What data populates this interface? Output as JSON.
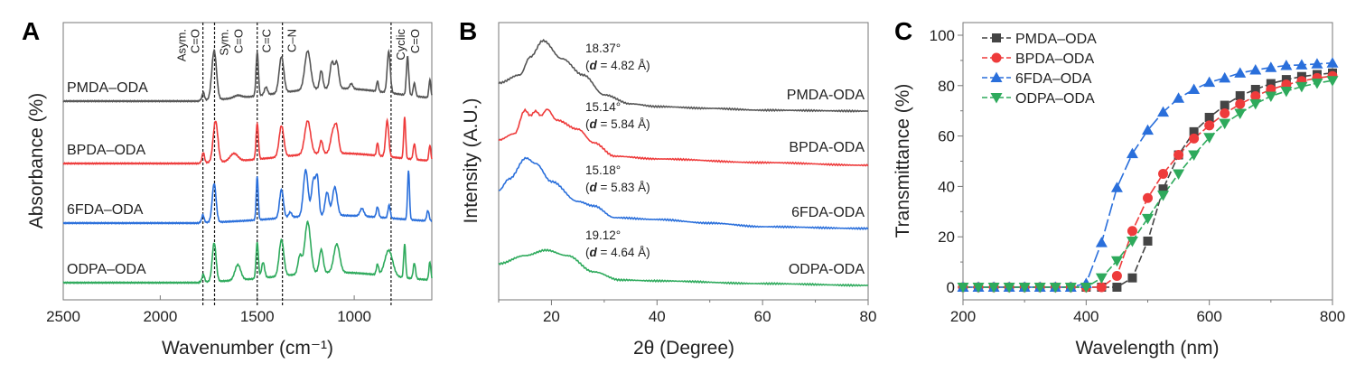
{
  "panels": {
    "a": "A",
    "b": "B",
    "c": "C"
  },
  "chart_data": [
    {
      "type": "line",
      "panel": "A",
      "xlabel": "Wavenumber (cm⁻¹)",
      "ylabel": "Absorbance (%)",
      "xlim": [
        2500,
        600
      ],
      "x_reversed": true,
      "xticks": [
        "2500",
        "2000",
        "1500",
        "1000"
      ],
      "y_ticks_shown": false,
      "band_lines": [
        {
          "wavenumber": 1780,
          "label": [
            "Asym.",
            "C=O"
          ]
        },
        {
          "wavenumber": 1720,
          "label": [
            "Sym.",
            "C=O"
          ]
        },
        {
          "wavenumber": 1500,
          "label": [
            "C=C"
          ]
        },
        {
          "wavenumber": 1370,
          "label": [
            "C–N"
          ]
        },
        {
          "wavenumber": 810,
          "label": [
            "Cyclic",
            "C=O"
          ]
        }
      ],
      "series": [
        {
          "name": "PMDA–ODA",
          "color": "#555555",
          "peaks_wavenumber_height_width": [
            [
              1778,
              0.15,
              6
            ],
            [
              1722,
              0.95,
              12
            ],
            [
              1600,
              0.05,
              20
            ],
            [
              1500,
              0.85,
              6
            ],
            [
              1455,
              0.15,
              8
            ],
            [
              1375,
              0.7,
              12
            ],
            [
              1240,
              0.75,
              15
            ],
            [
              1170,
              0.35,
              8
            ],
            [
              1115,
              0.5,
              10
            ],
            [
              1090,
              0.5,
              10
            ],
            [
              1015,
              0.1,
              8
            ],
            [
              880,
              0.2,
              5
            ],
            [
              822,
              0.8,
              8
            ],
            [
              725,
              0.75,
              6
            ],
            [
              690,
              0.25,
              6
            ],
            [
              610,
              0.35,
              5
            ],
            [
              1100,
              0.25,
              300
            ]
          ]
        },
        {
          "name": "BPDA–ODA",
          "color": "#ee3b3b",
          "peaks_wavenumber_height_width": [
            [
              1778,
              0.2,
              6
            ],
            [
              1715,
              0.8,
              12
            ],
            [
              1620,
              0.15,
              20
            ],
            [
              1500,
              0.7,
              6
            ],
            [
              1375,
              0.6,
              12
            ],
            [
              1240,
              0.65,
              15
            ],
            [
              1170,
              0.25,
              8
            ],
            [
              1110,
              0.4,
              12
            ],
            [
              1090,
              0.45,
              10
            ],
            [
              880,
              0.25,
              5
            ],
            [
              830,
              0.7,
              8
            ],
            [
              740,
              0.8,
              5
            ],
            [
              690,
              0.3,
              6
            ],
            [
              610,
              0.3,
              5
            ],
            [
              1100,
              0.2,
              300
            ]
          ]
        },
        {
          "name": "6FDA–ODA",
          "color": "#2a6fdb",
          "peaks_wavenumber_height_width": [
            [
              1780,
              0.15,
              6
            ],
            [
              1722,
              0.75,
              10
            ],
            [
              1500,
              0.85,
              5
            ],
            [
              1375,
              0.55,
              10
            ],
            [
              1330,
              0.1,
              8
            ],
            [
              1250,
              0.9,
              12
            ],
            [
              1210,
              0.7,
              10
            ],
            [
              1190,
              0.7,
              8
            ],
            [
              1140,
              0.45,
              10
            ],
            [
              1100,
              0.55,
              12
            ],
            [
              960,
              0.15,
              10
            ],
            [
              880,
              0.2,
              6
            ],
            [
              820,
              0.25,
              6
            ],
            [
              720,
              0.95,
              5
            ],
            [
              620,
              0.2,
              6
            ],
            [
              1100,
              0.15,
              300
            ]
          ]
        },
        {
          "name": "ODPA–ODA",
          "color": "#2eaa5c",
          "peaks_wavenumber_height_width": [
            [
              1778,
              0.15,
              6
            ],
            [
              1722,
              0.75,
              10
            ],
            [
              1600,
              0.3,
              15
            ],
            [
              1500,
              0.7,
              6
            ],
            [
              1470,
              0.3,
              8
            ],
            [
              1375,
              0.7,
              12
            ],
            [
              1280,
              0.35,
              10
            ],
            [
              1240,
              1.0,
              15
            ],
            [
              1170,
              0.45,
              10
            ],
            [
              1090,
              0.55,
              15
            ],
            [
              880,
              0.2,
              6
            ],
            [
              822,
              0.5,
              20
            ],
            [
              740,
              0.65,
              5
            ],
            [
              690,
              0.3,
              6
            ],
            [
              610,
              0.35,
              5
            ],
            [
              1100,
              0.2,
              300
            ]
          ]
        }
      ]
    },
    {
      "type": "line",
      "panel": "B",
      "xlabel": "2θ (Degree)",
      "ylabel": "Intensity (A.U.)",
      "xlim": [
        10,
        80
      ],
      "xticks": [
        "20",
        "40",
        "60",
        "80"
      ],
      "y_ticks_shown": false,
      "series": [
        {
          "name": "PMDA-ODA",
          "color": "#555555",
          "peak": "18.37°",
          "d": "4.82 Å",
          "points": [
            [
              10,
              31
            ],
            [
              14,
              40
            ],
            [
              16,
              60
            ],
            [
              18.4,
              78
            ],
            [
              22,
              58
            ],
            [
              26,
              40
            ],
            [
              30,
              18
            ],
            [
              35,
              8
            ],
            [
              40,
              5
            ],
            [
              50,
              3
            ],
            [
              60,
              1
            ],
            [
              80,
              0
            ]
          ]
        },
        {
          "name": "BPDA-ODA",
          "color": "#ee3b3b",
          "peak": "15.14°",
          "d": "5.84 Å",
          "points": [
            [
              10,
              28
            ],
            [
              13,
              35
            ],
            [
              15,
              61
            ],
            [
              16,
              55
            ],
            [
              17,
              60
            ],
            [
              18,
              55
            ],
            [
              19.2,
              62
            ],
            [
              21,
              50
            ],
            [
              25,
              40
            ],
            [
              28,
              25
            ],
            [
              32,
              10
            ],
            [
              40,
              7
            ],
            [
              60,
              3
            ],
            [
              80,
              0
            ]
          ]
        },
        {
          "name": "6FDA-ODA",
          "color": "#2a6fdb",
          "peak": "15.18°",
          "d": "5.83 Å",
          "points": [
            [
              10,
              42
            ],
            [
              12,
              55
            ],
            [
              15.2,
              78
            ],
            [
              17,
              72
            ],
            [
              20,
              52
            ],
            [
              25,
              30
            ],
            [
              28,
              25
            ],
            [
              32,
              12
            ],
            [
              40,
              10
            ],
            [
              50,
              6
            ],
            [
              60,
              2
            ],
            [
              80,
              0
            ]
          ]
        },
        {
          "name": "ODPA-ODA",
          "color": "#2eaa5c",
          "peak": "19.12°",
          "d": "4.64 Å",
          "points": [
            [
              10,
              24
            ],
            [
              15,
              33
            ],
            [
              19,
              39
            ],
            [
              23,
              33
            ],
            [
              28,
              15
            ],
            [
              33,
              6
            ],
            [
              40,
              5
            ],
            [
              60,
              2
            ],
            [
              80,
              0
            ]
          ]
        }
      ]
    },
    {
      "type": "line",
      "panel": "C",
      "xlabel": "Wavelength (nm)",
      "ylabel": "Transmittance (%)",
      "xlim": [
        200,
        800
      ],
      "ylim": [
        0,
        100
      ],
      "xticks": [
        "200",
        "400",
        "600",
        "800"
      ],
      "yticks": [
        "0",
        "20",
        "40",
        "60",
        "80",
        "100"
      ],
      "legend": "top-left",
      "x": [
        200,
        225,
        250,
        275,
        300,
        325,
        350,
        375,
        400,
        425,
        450,
        475,
        500,
        525,
        550,
        575,
        600,
        625,
        650,
        675,
        700,
        725,
        750,
        775,
        800
      ],
      "series": [
        {
          "name": "PMDA–ODA",
          "color": "#444444",
          "marker": "square",
          "values": [
            0,
            0,
            0,
            0,
            0,
            0,
            0,
            0,
            0,
            0,
            0,
            3.7,
            18.3,
            39,
            52.5,
            61.7,
            67.4,
            72.2,
            76,
            78.5,
            80.8,
            82.4,
            83.6,
            84.4,
            85
          ]
        },
        {
          "name": "BPDA–ODA",
          "color": "#ee3b3b",
          "marker": "circle",
          "values": [
            0,
            0,
            0,
            0,
            0,
            0,
            0,
            0,
            0,
            0,
            4.5,
            22.3,
            35.4,
            45,
            52.5,
            59,
            64.2,
            69,
            72.7,
            75.8,
            78.5,
            80.4,
            81.8,
            83,
            83.8
          ]
        },
        {
          "name": "6FDA–ODA",
          "color": "#2a6fdb",
          "marker": "triangle-up",
          "values": [
            0,
            0,
            0,
            0,
            0,
            0,
            0,
            0,
            1.5,
            17.7,
            39.5,
            53,
            62.3,
            69.5,
            75,
            78.5,
            81.3,
            83,
            85,
            86.2,
            87.2,
            88,
            88.2,
            88.6,
            89
          ]
        },
        {
          "name": "ODPA–ODA",
          "color": "#2eaa5c",
          "marker": "triangle-down",
          "values": [
            0,
            0,
            0,
            0,
            0,
            0,
            0,
            0,
            0,
            3.7,
            10.5,
            18.3,
            27.3,
            36.5,
            45,
            52.5,
            59.4,
            65,
            69,
            72.8,
            75.8,
            77.8,
            79.6,
            81,
            82
          ]
        }
      ]
    }
  ]
}
